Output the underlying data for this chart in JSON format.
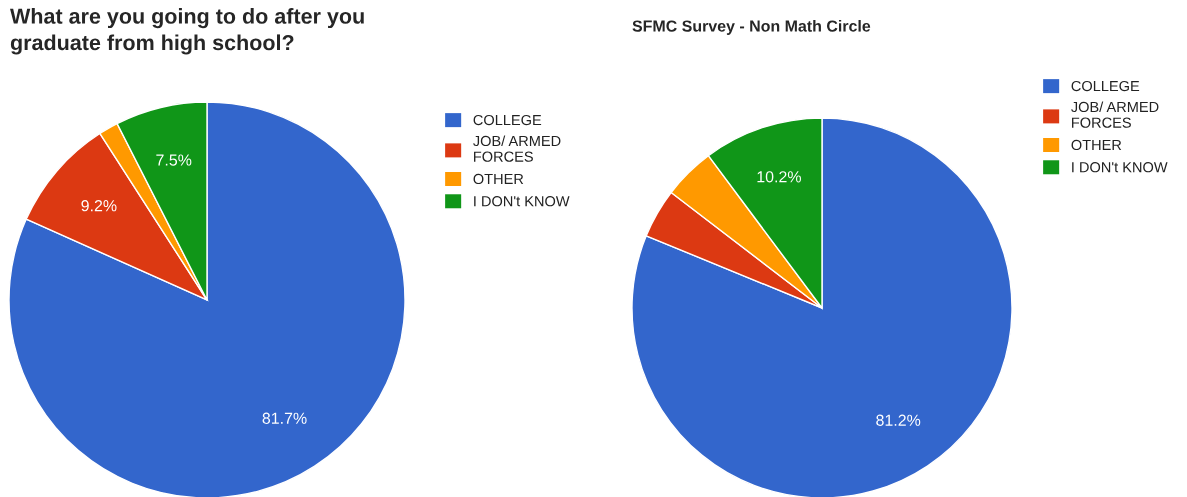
{
  "chart_data": [
    {
      "type": "pie",
      "title": "What are you going to do after you graduate from high school?",
      "categories": [
        "COLLEGE",
        "JOB/ ARMED FORCES",
        "OTHER",
        "I DON't KNOW"
      ],
      "values": [
        81.7,
        9.2,
        1.6,
        7.5
      ],
      "colors": [
        "#3366cc",
        "#dc3912",
        "#ff9900",
        "#109618"
      ],
      "value_labels": [
        "81.7%",
        "9.2%",
        null,
        "7.5%"
      ],
      "legend": "right"
    },
    {
      "type": "pie",
      "title": "SFMC Survey - Non Math Circle",
      "categories": [
        "COLLEGE",
        "JOB/ ARMED FORCES",
        "OTHER",
        "I DON't KNOW"
      ],
      "values": [
        81.2,
        4.2,
        4.4,
        10.2
      ],
      "colors": [
        "#3366cc",
        "#dc3912",
        "#ff9900",
        "#109618"
      ],
      "value_labels": [
        "81.2%",
        null,
        null,
        "10.2%"
      ],
      "legend": "right"
    }
  ]
}
